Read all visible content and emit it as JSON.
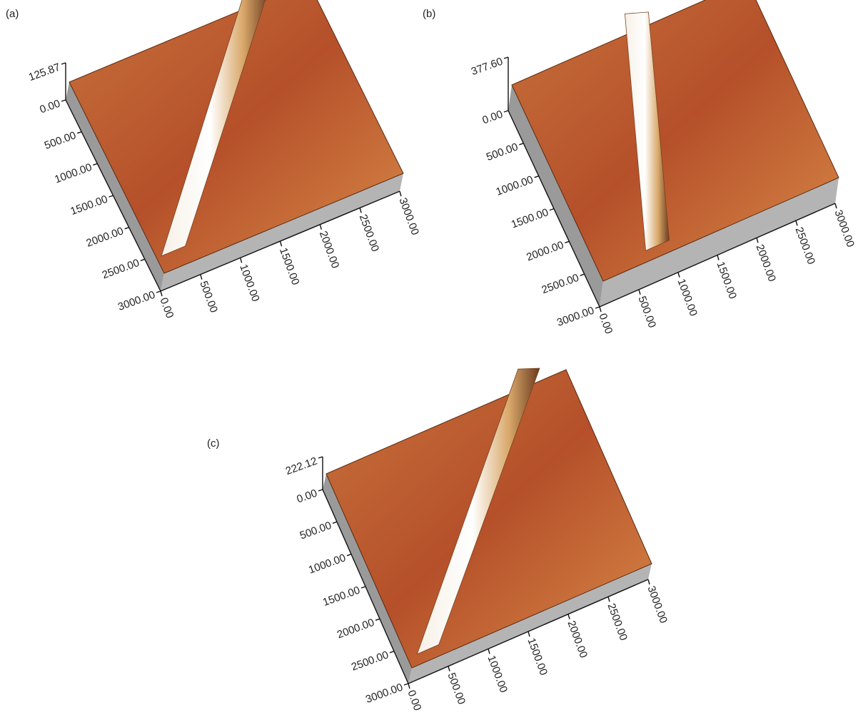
{
  "panels": [
    {
      "label": "(a)",
      "z_max": "125.87",
      "y_ticks": [
        "0.00",
        "500.00",
        "1000.00",
        "1500.00",
        "2000.00",
        "2500.00",
        "3000.00"
      ],
      "x_ticks": [
        "0.00",
        "500.00",
        "1000.00",
        "1500.00",
        "2000.00",
        "2500.00",
        "3000.00"
      ]
    },
    {
      "label": "(b)",
      "z_max": "377.60",
      "y_ticks": [
        "0.00",
        "500.00",
        "1000.00",
        "1500.00",
        "2000.00",
        "2500.00",
        "3000.00"
      ],
      "x_ticks": [
        "0.00",
        "500.00",
        "1000.00",
        "1500.00",
        "2000.00",
        "2500.00",
        "3000.00"
      ]
    },
    {
      "label": "(c)",
      "z_max": "222.12",
      "y_ticks": [
        "0.00",
        "500.00",
        "1000.00",
        "1500.00",
        "2000.00",
        "2500.00",
        "3000.00"
      ],
      "x_ticks": [
        "0.00",
        "500.00",
        "1000.00",
        "1500.00",
        "2000.00",
        "2500.00",
        "3000.00"
      ]
    }
  ]
}
